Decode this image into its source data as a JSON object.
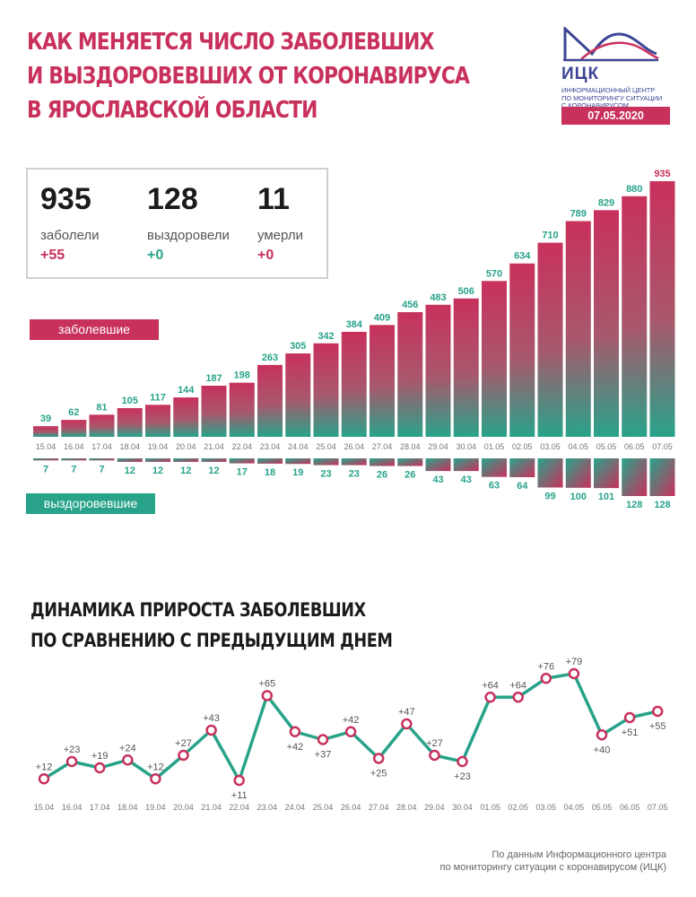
{
  "header": {
    "title_lines": [
      "КАК МЕНЯЕТСЯ ЧИСЛО ЗАБОЛЕВШИХ",
      "И ВЫЗДОРОВЕВШИХ ОТ КОРОНАВИРУСА",
      "В ЯРОСЛАВСКОЙ ОБЛАСТИ"
    ],
    "logo_text": "ИЦК",
    "logo_subtitle": [
      "ИНФОРМАЦИОННЫЙ ЦЕНТР",
      "ПО МОНИТОРИНГУ СИТУАЦИИ",
      "С КОРОНАВИРУСОМ"
    ],
    "date": "07.05.2020"
  },
  "stats": [
    {
      "value": "935",
      "label": "заболели",
      "delta": "+55"
    },
    {
      "value": "128",
      "label": "выздоровели",
      "delta": "+0"
    },
    {
      "value": "11",
      "label": "умерли",
      "delta": "+0"
    }
  ],
  "legend": {
    "infected": "заболевшие",
    "recovered": "выздоровевшие"
  },
  "chart_data": [
    {
      "type": "bar",
      "categories": [
        "15.04",
        "16.04",
        "17.04",
        "18.04",
        "19.04",
        "20.04",
        "21.04",
        "22.04",
        "23.04",
        "24.04",
        "25.04",
        "26.04",
        "27.04",
        "28.04",
        "29.04",
        "30.04",
        "01.05",
        "02.05",
        "03.05",
        "04.05",
        "05.05",
        "06.05",
        "07.05"
      ],
      "series": [
        {
          "name": "заболевшие",
          "values": [
            39,
            62,
            81,
            105,
            117,
            144,
            187,
            198,
            263,
            305,
            342,
            384,
            409,
            456,
            483,
            506,
            570,
            634,
            710,
            789,
            829,
            880,
            935
          ]
        },
        {
          "name": "выздоровевшие",
          "values": [
            7,
            7,
            7,
            12,
            12,
            12,
            12,
            17,
            18,
            19,
            23,
            23,
            26,
            26,
            43,
            43,
            63,
            64,
            99,
            100,
            101,
            128,
            128
          ]
        }
      ],
      "colors": {
        "infected_label": "#28a38a",
        "recovered_label": "#28a38a",
        "last_infected_label": "#c8315c",
        "pink": "#c8315c",
        "teal": "#28a38a"
      }
    },
    {
      "type": "line",
      "title": "ДИНАМИКА ПРИРОСТА ЗАБОЛЕВШИХ ПО СРАВНЕНИЮ С ПРЕДЫДУЩИМ ДНЕМ",
      "title_lines": [
        "ДИНАМИКА ПРИРОСТА ЗАБОЛЕВШИХ",
        "ПО СРАВНЕНИЮ С ПРЕДЫДУЩИМ ДНЕМ"
      ],
      "x": [
        "15.04",
        "16.04",
        "17.04",
        "18.04",
        "19.04",
        "20.04",
        "21.04",
        "22.04",
        "23.04",
        "24.04",
        "25.04",
        "26.04",
        "27.04",
        "28.04",
        "29.04",
        "30.04",
        "01.05",
        "02.05",
        "03.05",
        "04.05",
        "05.05",
        "06.05",
        "07.05"
      ],
      "values": [
        12,
        23,
        19,
        24,
        12,
        27,
        43,
        11,
        65,
        42,
        37,
        42,
        25,
        47,
        27,
        23,
        64,
        64,
        76,
        79,
        40,
        51,
        55
      ],
      "labels": [
        "+12",
        "+23",
        "+19",
        "+24",
        "+12",
        "+27",
        "+43",
        "+11",
        "+65",
        "+42",
        "+37",
        "+42",
        "+25",
        "+47",
        "+27",
        "+23",
        "+64",
        "+64",
        "+76",
        "+79",
        "+40",
        "+51",
        "+55"
      ],
      "label_placement": [
        "above",
        "above",
        "above",
        "above",
        "above",
        "above",
        "above",
        "below",
        "above",
        "below",
        "below",
        "above",
        "below",
        "above",
        "above",
        "below",
        "above",
        "above",
        "above",
        "above",
        "below",
        "below",
        "below"
      ],
      "colors": {
        "line": "#28a38a",
        "marker": "#c8315c"
      }
    }
  ],
  "source_lines": [
    "По данным Информационного центра",
    "по мониторингу ситуации с коронавирусом (ИЦК)"
  ]
}
